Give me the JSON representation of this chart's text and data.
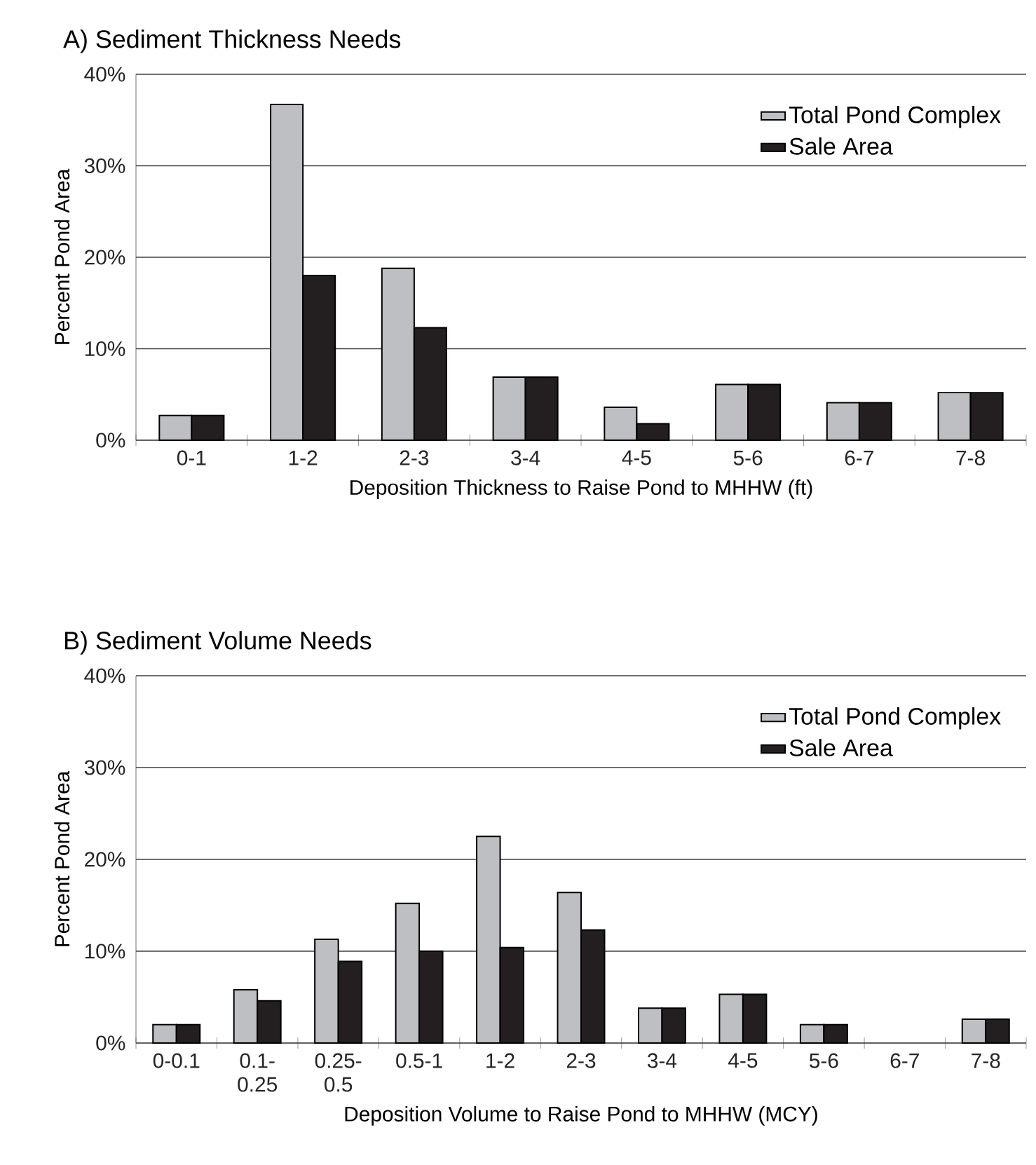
{
  "chart_data": [
    {
      "type": "bar",
      "title": "A) Sediment Thickness Needs",
      "xlabel": "Deposition Thickness to Raise Pond to MHHW (ft)",
      "ylabel": "Percent Pond Area",
      "categories": [
        "0-1",
        "1-2",
        "2-3",
        "3-4",
        "4-5",
        "5-6",
        "6-7",
        "7-8"
      ],
      "series": [
        {
          "name": "Total Pond Complex",
          "color": "#bebfc2",
          "values": [
            2.7,
            36.7,
            18.8,
            6.9,
            3.6,
            6.1,
            4.1,
            5.2
          ]
        },
        {
          "name": "Sale Area",
          "color": "#231f20",
          "values": [
            2.7,
            18.0,
            12.3,
            6.9,
            1.8,
            6.1,
            4.1,
            5.2
          ]
        }
      ],
      "ylim": [
        0,
        40
      ],
      "yticks": [
        {
          "value": 0,
          "label": "0%"
        },
        {
          "value": 10,
          "label": "10%"
        },
        {
          "value": 20,
          "label": "20%"
        },
        {
          "value": 30,
          "label": "30%"
        },
        {
          "value": 40,
          "label": "40%"
        }
      ],
      "grid": "y",
      "legend": "top right"
    },
    {
      "type": "bar",
      "title": "B) Sediment Volume Needs",
      "xlabel": "Deposition Volume to Raise Pond to MHHW (MCY)",
      "ylabel": "Percent Pond Area",
      "categories": [
        "0-0.1",
        "0.1- 0.25",
        "0.25- 0.5",
        "0.5-1",
        "1-2",
        "2-3",
        "3-4",
        "4-5",
        "5-6",
        "6-7",
        "7-8"
      ],
      "series": [
        {
          "name": "Total Pond Complex",
          "color": "#bebfc2",
          "values": [
            2.0,
            5.8,
            11.3,
            15.2,
            22.5,
            16.4,
            3.8,
            5.3,
            2.0,
            null,
            2.6
          ]
        },
        {
          "name": "Sale Area",
          "color": "#231f20",
          "values": [
            2.0,
            4.6,
            8.9,
            10.0,
            10.4,
            12.3,
            3.8,
            5.3,
            2.0,
            null,
            2.6
          ]
        }
      ],
      "ylim": [
        0,
        40
      ],
      "yticks": [
        {
          "value": 0,
          "label": "0%"
        },
        {
          "value": 10,
          "label": "10%"
        },
        {
          "value": 20,
          "label": "20%"
        },
        {
          "value": 30,
          "label": "30%"
        },
        {
          "value": 40,
          "label": "40%"
        }
      ],
      "grid": "y",
      "legend": "top right"
    }
  ]
}
